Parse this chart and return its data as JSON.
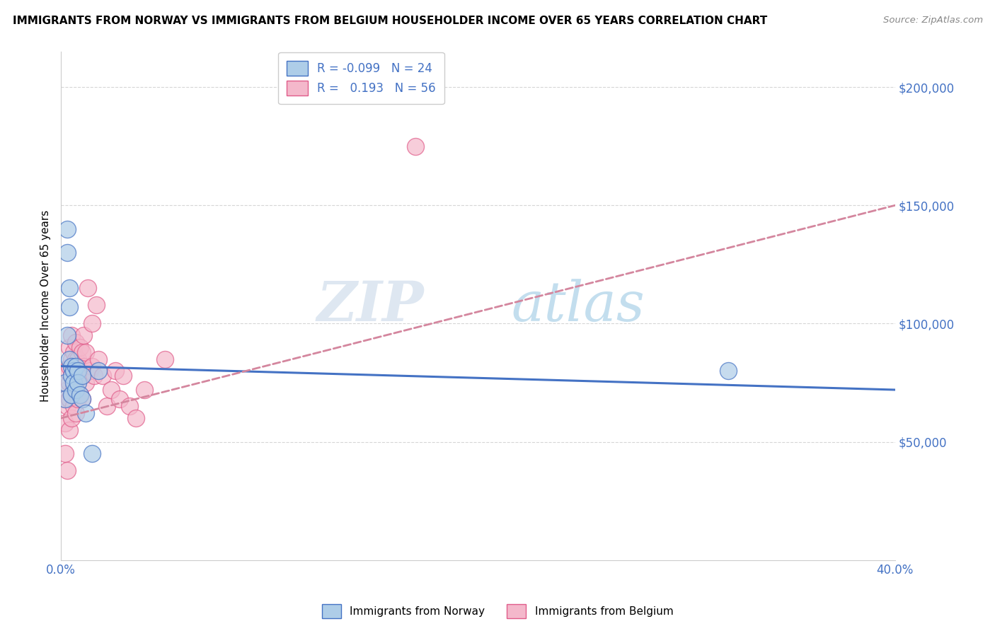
{
  "title": "IMMIGRANTS FROM NORWAY VS IMMIGRANTS FROM BELGIUM HOUSEHOLDER INCOME OVER 65 YEARS CORRELATION CHART",
  "source": "Source: ZipAtlas.com",
  "ylabel": "Householder Income Over 65 years",
  "xlim": [
    0.0,
    0.4
  ],
  "ylim": [
    0,
    215000
  ],
  "norway_R": -0.099,
  "norway_N": 24,
  "belgium_R": 0.193,
  "belgium_N": 56,
  "norway_color": "#aecde8",
  "belgium_color": "#f4b8cb",
  "norway_edge_color": "#4472C4",
  "belgium_edge_color": "#E05C8A",
  "norway_line_color": "#4472C4",
  "belgium_line_color": "#d4869e",
  "norway_scatter_x": [
    0.002,
    0.002,
    0.003,
    0.003,
    0.003,
    0.004,
    0.004,
    0.004,
    0.005,
    0.005,
    0.005,
    0.006,
    0.006,
    0.007,
    0.007,
    0.008,
    0.008,
    0.009,
    0.01,
    0.01,
    0.012,
    0.015,
    0.018,
    0.32
  ],
  "norway_scatter_y": [
    75000,
    68000,
    140000,
    130000,
    95000,
    115000,
    107000,
    85000,
    82000,
    78000,
    70000,
    80000,
    75000,
    82000,
    72000,
    80000,
    75000,
    70000,
    78000,
    68000,
    62000,
    45000,
    80000,
    80000
  ],
  "belgium_scatter_x": [
    0.002,
    0.002,
    0.002,
    0.003,
    0.003,
    0.003,
    0.003,
    0.004,
    0.004,
    0.004,
    0.004,
    0.004,
    0.005,
    0.005,
    0.005,
    0.005,
    0.005,
    0.006,
    0.006,
    0.006,
    0.006,
    0.007,
    0.007,
    0.007,
    0.007,
    0.008,
    0.008,
    0.008,
    0.009,
    0.009,
    0.009,
    0.01,
    0.01,
    0.01,
    0.011,
    0.011,
    0.012,
    0.012,
    0.013,
    0.014,
    0.015,
    0.015,
    0.016,
    0.017,
    0.018,
    0.02,
    0.022,
    0.024,
    0.026,
    0.028,
    0.03,
    0.033,
    0.036,
    0.04,
    0.05,
    0.17
  ],
  "belgium_scatter_y": [
    68000,
    58000,
    45000,
    80000,
    72000,
    65000,
    38000,
    90000,
    82000,
    75000,
    68000,
    55000,
    95000,
    85000,
    78000,
    70000,
    60000,
    88000,
    80000,
    73000,
    65000,
    92000,
    85000,
    75000,
    62000,
    85000,
    78000,
    68000,
    90000,
    80000,
    70000,
    88000,
    78000,
    68000,
    95000,
    82000,
    88000,
    75000,
    115000,
    80000,
    100000,
    82000,
    78000,
    108000,
    85000,
    78000,
    65000,
    72000,
    80000,
    68000,
    78000,
    65000,
    60000,
    72000,
    85000,
    175000
  ],
  "norway_line_x0": 0.0,
  "norway_line_y0": 82000,
  "norway_line_x1": 0.4,
  "norway_line_y1": 72000,
  "belgium_line_x0": 0.0,
  "belgium_line_y0": 60000,
  "belgium_line_x1": 0.4,
  "belgium_line_y1": 150000,
  "watermark_zip": "ZIP",
  "watermark_atlas": "atlas",
  "background_color": "#ffffff",
  "grid_color": "#cccccc",
  "tick_color": "#4472C4",
  "axis_color": "#cccccc"
}
